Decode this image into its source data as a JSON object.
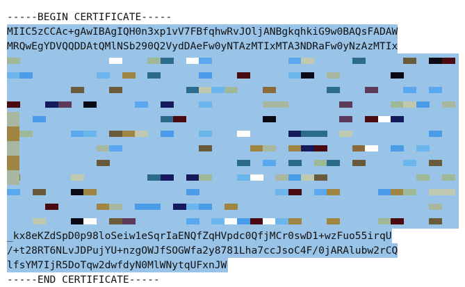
{
  "certificate": {
    "begin_marker": "-----BEGIN CERTIFICATE-----",
    "lines_top": [
      "MIIC5zCCAc+gAwIBAgIQH0n3xp1vV7FBfqhwRvJOljANBgkqhkiG9w0BAQsFADAW",
      "MRQwEgYDVQQDDAtQMlNSb290Q2VydDAeFw0yNTAzMTIxMTA3NDRaFw0yNzAzMTIx"
    ],
    "lines_bottom": [
      "_kx8eKZdSpD0p98loSeiw1eSqrIaENQfZqHVpdc0QfjMCr0swD1+wzFuo55irqU",
      "/+t28RT6NLvJDPujYU+nzgOWJfSOGWfa2y8781Lha7ccJsoC4F/0jARAlubw2rCQ",
      "lfsYM7IjR5DoTqw2dwfdyN0MlWNytqUFxnJW"
    ],
    "end_marker": "-----END CERTIFICATE-----",
    "selection_color": "#99c4e8",
    "mosaic_colors": [
      "#4a9ce8",
      "#5aa8f0",
      "#6cb6ee",
      "#141a5c",
      "#0a0a14",
      "#4a0a12",
      "#9e8642",
      "#8a6a3a",
      "#6a5a3c",
      "#a8b8a0",
      "#9eb898",
      "#c0c8b0",
      "#ffffff",
      "#2a6a8a",
      "#5c3a5a"
    ]
  }
}
